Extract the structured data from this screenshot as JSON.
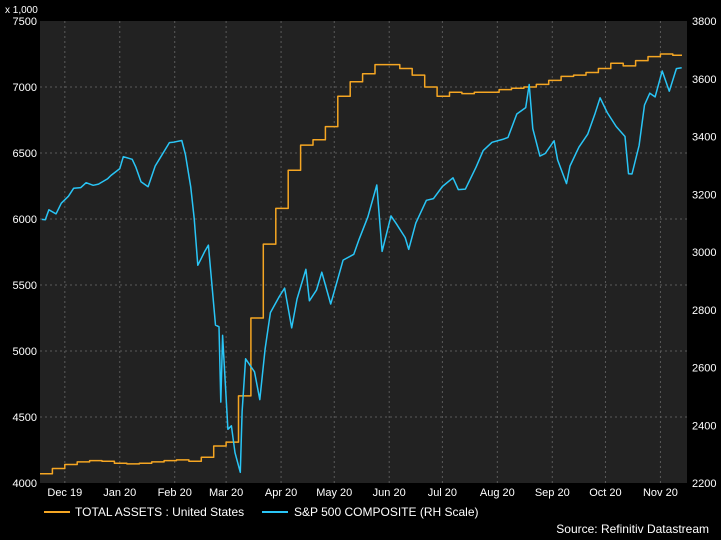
{
  "chart_data": {
    "type": "line",
    "left_axis": {
      "unit_label": "x 1,000",
      "ylim": [
        4000,
        7500
      ],
      "ticks": [
        4000,
        4500,
        5000,
        5500,
        6000,
        6500,
        7000,
        7500
      ]
    },
    "right_axis": {
      "ylim": [
        2200,
        3800
      ],
      "ticks": [
        2200,
        2400,
        2600,
        2800,
        3000,
        3200,
        3400,
        3600,
        3800
      ]
    },
    "x_range": [
      "2019-12-01",
      "2020-11-30"
    ],
    "x_ticks": [
      {
        "label": "Dec 19",
        "date": "2019-12-15"
      },
      {
        "label": "Jan 20",
        "date": "2020-01-15"
      },
      {
        "label": "Feb 20",
        "date": "2020-02-15"
      },
      {
        "label": "Mar 20",
        "date": "2020-03-15"
      },
      {
        "label": "Apr 20",
        "date": "2020-04-15"
      },
      {
        "label": "May 20",
        "date": "2020-05-15"
      },
      {
        "label": "Jun 20",
        "date": "2020-06-15"
      },
      {
        "label": "Jul 20",
        "date": "2020-07-15"
      },
      {
        "label": "Aug 20",
        "date": "2020-08-15"
      },
      {
        "label": "Sep 20",
        "date": "2020-09-15"
      },
      {
        "label": "Oct 20",
        "date": "2020-10-15"
      },
      {
        "label": "Nov 20",
        "date": "2020-11-15"
      }
    ],
    "grid": true,
    "legend_position": "bottom",
    "series": [
      {
        "name": "TOTAL ASSETS : United States",
        "axis": "left",
        "color": "#f5a623",
        "step": true,
        "points": [
          [
            "2019-12-01",
            4070
          ],
          [
            "2019-12-08",
            4110
          ],
          [
            "2019-12-15",
            4140
          ],
          [
            "2019-12-22",
            4160
          ],
          [
            "2019-12-29",
            4170
          ],
          [
            "2020-01-05",
            4165
          ],
          [
            "2020-01-12",
            4150
          ],
          [
            "2020-01-19",
            4145
          ],
          [
            "2020-01-26",
            4150
          ],
          [
            "2020-02-02",
            4160
          ],
          [
            "2020-02-09",
            4170
          ],
          [
            "2020-02-16",
            4175
          ],
          [
            "2020-02-23",
            4165
          ],
          [
            "2020-03-01",
            4195
          ],
          [
            "2020-03-08",
            4280
          ],
          [
            "2020-03-15",
            4310
          ],
          [
            "2020-03-22",
            4660
          ],
          [
            "2020-03-29",
            5250
          ],
          [
            "2020-04-05",
            5810
          ],
          [
            "2020-04-12",
            6080
          ],
          [
            "2020-04-19",
            6370
          ],
          [
            "2020-04-26",
            6560
          ],
          [
            "2020-05-03",
            6600
          ],
          [
            "2020-05-10",
            6700
          ],
          [
            "2020-05-17",
            6930
          ],
          [
            "2020-05-24",
            7040
          ],
          [
            "2020-05-31",
            7100
          ],
          [
            "2020-06-07",
            7170
          ],
          [
            "2020-06-14",
            7170
          ],
          [
            "2020-06-21",
            7140
          ],
          [
            "2020-06-28",
            7090
          ],
          [
            "2020-07-05",
            7000
          ],
          [
            "2020-07-12",
            6930
          ],
          [
            "2020-07-19",
            6960
          ],
          [
            "2020-07-26",
            6950
          ],
          [
            "2020-08-02",
            6960
          ],
          [
            "2020-08-09",
            6960
          ],
          [
            "2020-08-16",
            6980
          ],
          [
            "2020-08-23",
            6990
          ],
          [
            "2020-08-30",
            7000
          ],
          [
            "2020-09-06",
            7020
          ],
          [
            "2020-09-13",
            7050
          ],
          [
            "2020-09-20",
            7080
          ],
          [
            "2020-09-27",
            7090
          ],
          [
            "2020-10-04",
            7110
          ],
          [
            "2020-10-11",
            7140
          ],
          [
            "2020-10-18",
            7180
          ],
          [
            "2020-10-25",
            7160
          ],
          [
            "2020-11-01",
            7200
          ],
          [
            "2020-11-08",
            7230
          ],
          [
            "2020-11-15",
            7250
          ],
          [
            "2020-11-22",
            7240
          ]
        ]
      },
      {
        "name": "S&P 500 COMPOSITE (RH Scale)",
        "axis": "right",
        "color": "#29c5f6",
        "step": false,
        "points": [
          [
            "2019-12-02",
            3113
          ],
          [
            "2019-12-04",
            3112
          ],
          [
            "2019-12-06",
            3146
          ],
          [
            "2019-12-10",
            3132
          ],
          [
            "2019-12-13",
            3169
          ],
          [
            "2019-12-17",
            3193
          ],
          [
            "2019-12-20",
            3221
          ],
          [
            "2019-12-24",
            3223
          ],
          [
            "2019-12-27",
            3240
          ],
          [
            "2019-12-31",
            3231
          ],
          [
            "2020-01-03",
            3235
          ],
          [
            "2020-01-08",
            3253
          ],
          [
            "2020-01-10",
            3265
          ],
          [
            "2020-01-15",
            3289
          ],
          [
            "2020-01-17",
            3330
          ],
          [
            "2020-01-22",
            3321
          ],
          [
            "2020-01-24",
            3295
          ],
          [
            "2020-01-27",
            3243
          ],
          [
            "2020-01-31",
            3226
          ],
          [
            "2020-02-04",
            3298
          ],
          [
            "2020-02-07",
            3328
          ],
          [
            "2020-02-12",
            3379
          ],
          [
            "2020-02-14",
            3380
          ],
          [
            "2020-02-19",
            3386
          ],
          [
            "2020-02-21",
            3338
          ],
          [
            "2020-02-24",
            3226
          ],
          [
            "2020-02-26",
            3116
          ],
          [
            "2020-02-28",
            2954
          ],
          [
            "2020-03-03",
            3003
          ],
          [
            "2020-03-05",
            3024
          ],
          [
            "2020-03-09",
            2747
          ],
          [
            "2020-03-11",
            2741
          ],
          [
            "2020-03-12",
            2480
          ],
          [
            "2020-03-13",
            2711
          ],
          [
            "2020-03-16",
            2386
          ],
          [
            "2020-03-18",
            2398
          ],
          [
            "2020-03-20",
            2305
          ],
          [
            "2020-03-23",
            2237
          ],
          [
            "2020-03-24",
            2447
          ],
          [
            "2020-03-26",
            2630
          ],
          [
            "2020-03-31",
            2585
          ],
          [
            "2020-04-03",
            2489
          ],
          [
            "2020-04-06",
            2664
          ],
          [
            "2020-04-09",
            2790
          ],
          [
            "2020-04-14",
            2846
          ],
          [
            "2020-04-17",
            2875
          ],
          [
            "2020-04-21",
            2737
          ],
          [
            "2020-04-24",
            2837
          ],
          [
            "2020-04-29",
            2940
          ],
          [
            "2020-05-01",
            2831
          ],
          [
            "2020-05-05",
            2868
          ],
          [
            "2020-05-08",
            2930
          ],
          [
            "2020-05-13",
            2820
          ],
          [
            "2020-05-15",
            2864
          ],
          [
            "2020-05-20",
            2972
          ],
          [
            "2020-05-26",
            2992
          ],
          [
            "2020-05-29",
            3044
          ],
          [
            "2020-06-03",
            3122
          ],
          [
            "2020-06-08",
            3232
          ],
          [
            "2020-06-11",
            3002
          ],
          [
            "2020-06-16",
            3125
          ],
          [
            "2020-06-19",
            3098
          ],
          [
            "2020-06-24",
            3050
          ],
          [
            "2020-06-26",
            3009
          ],
          [
            "2020-06-30",
            3100
          ],
          [
            "2020-07-06",
            3179
          ],
          [
            "2020-07-10",
            3185
          ],
          [
            "2020-07-15",
            3227
          ],
          [
            "2020-07-21",
            3257
          ],
          [
            "2020-07-24",
            3216
          ],
          [
            "2020-07-28",
            3218
          ],
          [
            "2020-08-03",
            3294
          ],
          [
            "2020-08-07",
            3351
          ],
          [
            "2020-08-12",
            3380
          ],
          [
            "2020-08-18",
            3390
          ],
          [
            "2020-08-21",
            3397
          ],
          [
            "2020-08-26",
            3478
          ],
          [
            "2020-08-31",
            3500
          ],
          [
            "2020-09-02",
            3580
          ],
          [
            "2020-09-04",
            3427
          ],
          [
            "2020-09-08",
            3332
          ],
          [
            "2020-09-11",
            3341
          ],
          [
            "2020-09-16",
            3385
          ],
          [
            "2020-09-18",
            3319
          ],
          [
            "2020-09-23",
            3237
          ],
          [
            "2020-09-25",
            3298
          ],
          [
            "2020-09-30",
            3363
          ],
          [
            "2020-10-05",
            3408
          ],
          [
            "2020-10-09",
            3477
          ],
          [
            "2020-10-12",
            3534
          ],
          [
            "2020-10-16",
            3483
          ],
          [
            "2020-10-21",
            3435
          ],
          [
            "2020-10-26",
            3400
          ],
          [
            "2020-10-28",
            3271
          ],
          [
            "2020-10-30",
            3270
          ],
          [
            "2020-11-03",
            3369
          ],
          [
            "2020-11-06",
            3509
          ],
          [
            "2020-11-09",
            3550
          ],
          [
            "2020-11-12",
            3537
          ],
          [
            "2020-11-16",
            3627
          ],
          [
            "2020-11-20",
            3557
          ],
          [
            "2020-11-24",
            3635
          ],
          [
            "2020-11-27",
            3638
          ]
        ]
      }
    ]
  },
  "legend": [
    {
      "label": "TOTAL ASSETS : United States",
      "color": "#f5a623"
    },
    {
      "label": "S&P 500 COMPOSITE (RH Scale)",
      "color": "#29c5f6"
    }
  ],
  "source": "Source: Refinitiv Datastream",
  "colors": {
    "plot_background": "#222222",
    "page_background": "#000000",
    "grid": "#5a5a5a"
  }
}
